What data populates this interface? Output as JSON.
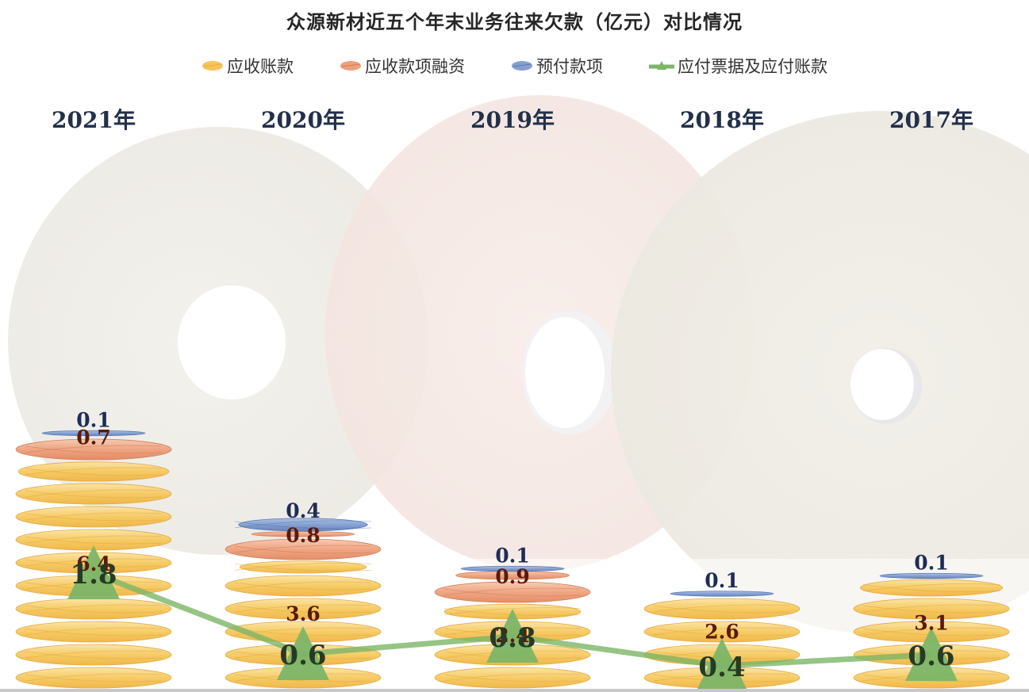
{
  "title": "众源新材近五个年末业务往来欠款（亿元）对比情况",
  "legend": [
    {
      "label": "应收账款",
      "icon": "coin-yellow-icon",
      "color": "#F4BE4A"
    },
    {
      "label": "应收款项融资",
      "icon": "coin-orange-icon",
      "color": "#E98F65"
    },
    {
      "label": "预付款项",
      "icon": "coin-blue-icon",
      "color": "#6F8FC8"
    },
    {
      "label": "应付票据及应付账款",
      "icon": "line-triangle-icon",
      "color": "#7CB567"
    }
  ],
  "years": [
    "2021年",
    "2020年",
    "2019年",
    "2018年",
    "2017年"
  ],
  "colors": {
    "receivables": "#F4BE4A",
    "financing": "#E98F65",
    "prepayments": "#6F8FC8",
    "payables": "#7CB567",
    "label_dark_red": "#5A1A0A",
    "label_navy": "#1F2D55",
    "label_green_dark": "#263A26"
  },
  "chart_data": {
    "type": "bar",
    "subtype": "pictorial stacked bar (coin stacks) with line overlay",
    "title": "众源新材近五个年末业务往来欠款（亿元）对比情况",
    "categories": [
      "2021年",
      "2020年",
      "2019年",
      "2018年",
      "2017年"
    ],
    "series": [
      {
        "name": "应收账款",
        "type": "bar",
        "stack": "total",
        "values": [
          6.4,
          3.6,
          2.4,
          2.6,
          3.1
        ]
      },
      {
        "name": "应收款项融资",
        "type": "bar",
        "stack": "total",
        "values": [
          0.7,
          0.8,
          0.9,
          0,
          0
        ]
      },
      {
        "name": "预付款项",
        "type": "bar",
        "stack": "total",
        "values": [
          0.1,
          0.4,
          0.1,
          0.1,
          0.1
        ]
      },
      {
        "name": "应付票据及应付账款",
        "type": "line",
        "marker": "triangle",
        "values": [
          1.8,
          0.6,
          0.8,
          0.4,
          0.6
        ]
      }
    ],
    "data_labels": {
      "应收账款": [
        "6.4",
        "3.6",
        "2.4",
        "2.6",
        "3.1"
      ],
      "应收款项融资": [
        "0.7",
        "0.8",
        "0.9",
        "",
        ""
      ],
      "预付款项": [
        "0.1",
        "0.4",
        "0.1",
        "0.1",
        "0.1"
      ],
      "应付票据及应付账款": [
        "1.8",
        "0.6",
        "0.8",
        "0.4",
        "0.6"
      ]
    },
    "xlabel": "",
    "ylabel": "",
    "axis_visible": false,
    "grid": false,
    "legend_position": "top"
  }
}
